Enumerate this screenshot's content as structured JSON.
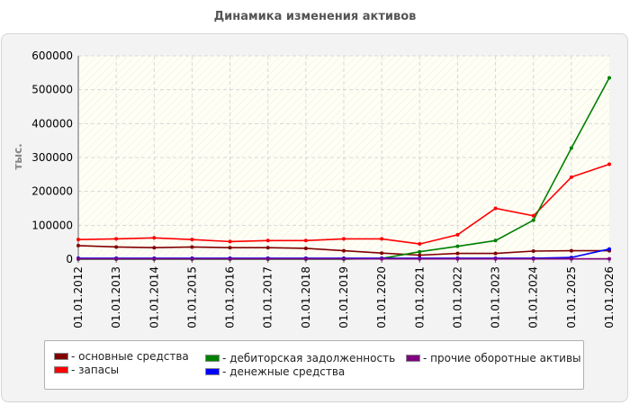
{
  "chart_data": {
    "type": "line",
    "title": "Динамика изменения активов",
    "ylabel": "тыс.",
    "xlabel": "",
    "ylim": [
      0,
      600000
    ],
    "yticks": [
      "0",
      "100000",
      "200000",
      "300000",
      "400000",
      "500000",
      "600000"
    ],
    "grid": true,
    "legend_position": "bottom",
    "categories": [
      "01.01.2012",
      "01.01.2013",
      "01.01.2014",
      "01.01.2015",
      "01.01.2016",
      "01.01.2017",
      "01.01.2018",
      "01.01.2019",
      "01.01.2020",
      "01.01.2021",
      "01.01.2022",
      "01.01.2023",
      "01.01.2024",
      "01.01.2025",
      "01.01.2026"
    ],
    "series": [
      {
        "name": "- основные средства",
        "color": "#800000",
        "values": [
          40000,
          36000,
          34000,
          36000,
          34000,
          34000,
          32000,
          25000,
          18000,
          12000,
          17000,
          17000,
          24000,
          25000,
          25000
        ]
      },
      {
        "name": "- запасы",
        "color": "#ff0000",
        "values": [
          58000,
          60000,
          63000,
          58000,
          52000,
          55000,
          55000,
          60000,
          60000,
          45000,
          72000,
          150000,
          128000,
          242000,
          280000
        ]
      },
      {
        "name": "- дебиторская задолженность",
        "color": "#008000",
        "values": [
          0,
          0,
          0,
          0,
          0,
          0,
          0,
          0,
          2000,
          22000,
          38000,
          55000,
          115000,
          328000,
          535000
        ]
      },
      {
        "name": "- денежные средства",
        "color": "#0000ff",
        "values": [
          3000,
          3000,
          3000,
          3000,
          3000,
          3000,
          3000,
          3000,
          3000,
          3000,
          3000,
          3000,
          3000,
          5000,
          30000
        ]
      },
      {
        "name": "- прочие оборотные активы",
        "color": "#800080",
        "values": [
          1000,
          1000,
          1000,
          1000,
          1000,
          1000,
          1000,
          1000,
          1000,
          1000,
          1000,
          1000,
          1000,
          1000,
          1000
        ]
      }
    ]
  }
}
